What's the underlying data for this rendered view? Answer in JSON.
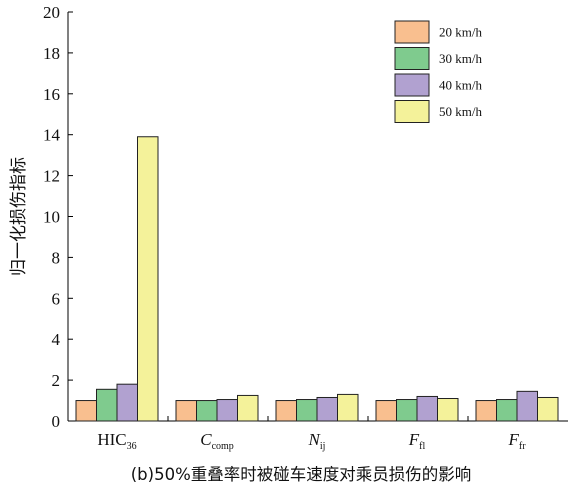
{
  "chart_data": {
    "type": "bar",
    "title": "",
    "caption": "(b)50%重叠率时被碰车速度对乘员损伤的影响",
    "xlabel": "",
    "ylabel": "归一化损伤指标",
    "ylim": [
      0,
      20
    ],
    "yticks": [
      0,
      2,
      4,
      6,
      8,
      10,
      12,
      14,
      16,
      18,
      20
    ],
    "grid": false,
    "legend_position": "top-right",
    "categories": [
      {
        "main": "HIC",
        "sub": "36",
        "italic": false
      },
      {
        "main": "C",
        "sub": "comp",
        "italic": true
      },
      {
        "main": "N",
        "sub": "ij",
        "italic": true
      },
      {
        "main": "F",
        "sub": "fl",
        "italic": true
      },
      {
        "main": "F",
        "sub": "fr",
        "italic": true
      }
    ],
    "series": [
      {
        "name": "20 km/h",
        "color": "#F9BF8F",
        "values": [
          1.0,
          1.0,
          1.0,
          1.0,
          1.0
        ]
      },
      {
        "name": "30 km/h",
        "color": "#7FCB8E",
        "values": [
          1.55,
          1.0,
          1.05,
          1.05,
          1.05
        ]
      },
      {
        "name": "40 km/h",
        "color": "#B1A1D0",
        "values": [
          1.8,
          1.05,
          1.15,
          1.2,
          1.45
        ]
      },
      {
        "name": "50 km/h",
        "color": "#F4F29A",
        "values": [
          13.9,
          1.25,
          1.3,
          1.1,
          1.15
        ]
      }
    ]
  }
}
